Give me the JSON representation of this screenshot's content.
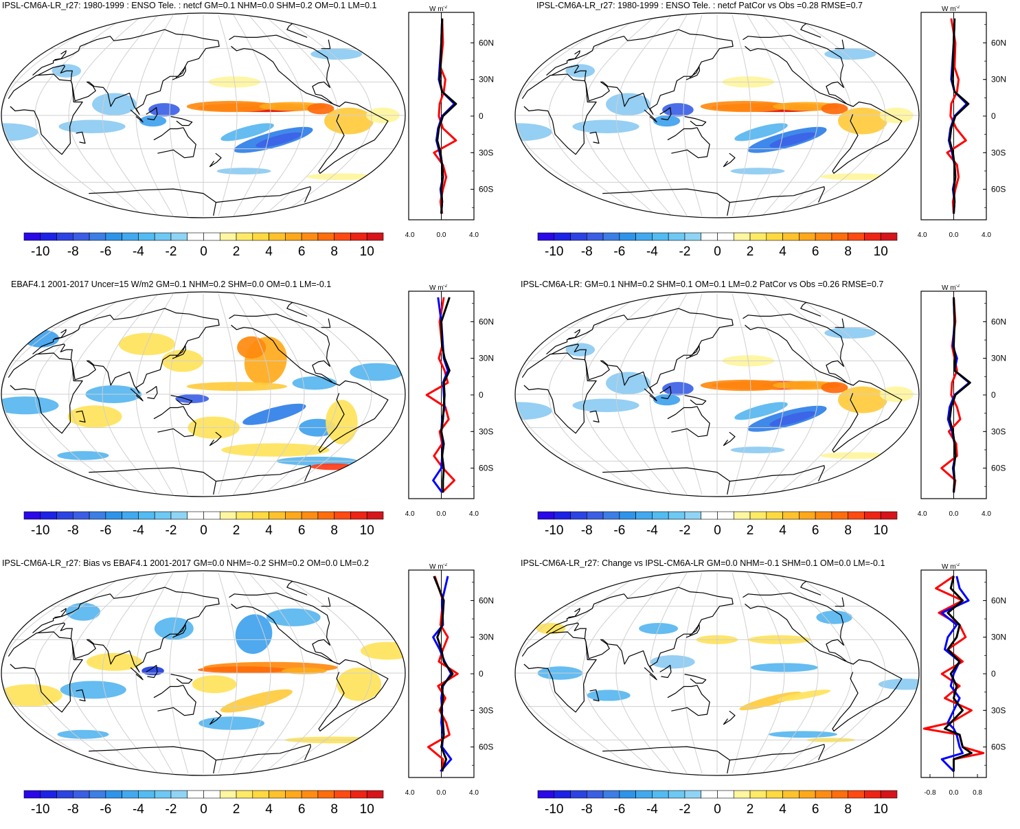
{
  "chart_data": [
    {
      "type": "heatmap",
      "title": "IPSL-CM6A-LR_r27: 1980-1999 : ENSO Tele. : netcf GM=0.1 NHM=0.0 SHM=0.2 OM=0.1 LM=0.1",
      "colorbar": {
        "ticks": [
          "-10",
          "-8",
          "-6",
          "-4",
          "-2",
          "0",
          "2",
          "4",
          "6",
          "8",
          "10"
        ],
        "range": [
          -11,
          11
        ]
      },
      "zonal_mean": {
        "unit_label": "W m",
        "unit_exp": "-2",
        "xticks": [
          "-4.0",
          "0.0",
          "4.0"
        ],
        "xlim": [
          -4,
          4
        ],
        "yticks": [
          "60N",
          "30N",
          "0",
          "30S",
          "60S"
        ],
        "series": [
          {
            "name": "obs",
            "color": "#ff0000",
            "lat": [
              80,
              60,
              40,
              30,
              20,
              10,
              0,
              -10,
              -20,
              -30,
              -40,
              -50,
              -60,
              -70,
              -80
            ],
            "values": [
              0.1,
              0.2,
              -0.1,
              0.5,
              0.3,
              -0.2,
              -0.3,
              0.2,
              1.8,
              -0.9,
              0.2,
              0.6,
              0.2,
              -0.1,
              0.1
            ]
          },
          {
            "name": "model_ref",
            "color": "#0000ff",
            "lat": [
              80,
              60,
              40,
              30,
              20,
              10,
              0,
              -10,
              -20,
              -30,
              -40,
              -50,
              -60,
              -70,
              -80
            ],
            "values": [
              0.1,
              0.0,
              -0.2,
              -0.3,
              0.1,
              1.6,
              0.1,
              -0.4,
              -0.6,
              -0.2,
              0.1,
              0.2,
              -0.1,
              0.1,
              0.0
            ]
          },
          {
            "name": "model",
            "color": "#000000",
            "lat": [
              80,
              60,
              40,
              30,
              20,
              10,
              0,
              -10,
              -20,
              -30,
              -40,
              -50,
              -60,
              -70,
              -80
            ],
            "values": [
              0.1,
              0.0,
              -0.1,
              -0.2,
              0.1,
              1.8,
              0.2,
              -0.3,
              -0.5,
              -0.1,
              0.1,
              0.2,
              0.0,
              0.1,
              0.0
            ]
          }
        ]
      }
    },
    {
      "type": "heatmap",
      "title": "IPSL-CM6A-LR_r27: 1980-1999 : ENSO Tele. : netcf PatCor vs Obs =0.28 RMSE=0.7",
      "colorbar": {
        "ticks": [
          "-10",
          "-8",
          "-6",
          "-4",
          "-2",
          "0",
          "2",
          "4",
          "6",
          "8",
          "10"
        ],
        "range": [
          -11,
          11
        ]
      },
      "zonal_mean": {
        "unit_label": "W m",
        "unit_exp": "-2",
        "xticks": [
          "-4.0",
          "0.0",
          "4.0"
        ],
        "xlim": [
          -4,
          4
        ],
        "yticks": [
          "60N",
          "30N",
          "0",
          "30S",
          "60S"
        ],
        "series": [
          {
            "name": "obs",
            "color": "#ff0000",
            "lat": [
              80,
              60,
              40,
              30,
              20,
              10,
              0,
              -10,
              -20,
              -30,
              -40,
              -50,
              -60,
              -70,
              -80
            ],
            "values": [
              -0.3,
              0.2,
              0.1,
              0.6,
              0.4,
              -0.3,
              -0.4,
              0.3,
              1.5,
              -0.8,
              0.4,
              0.6,
              0.2,
              -0.1,
              0.0
            ]
          },
          {
            "name": "model_ref",
            "color": "#0000ff",
            "lat": [
              80,
              60,
              40,
              30,
              20,
              10,
              0,
              -10,
              -20,
              -30,
              -40,
              -50,
              -60,
              -70,
              -80
            ],
            "values": [
              0.1,
              0.0,
              -0.2,
              -0.3,
              0.1,
              1.6,
              0.1,
              -0.4,
              -0.6,
              -0.2,
              0.1,
              0.2,
              -0.1,
              0.1,
              0.0
            ]
          },
          {
            "name": "model",
            "color": "#000000",
            "lat": [
              80,
              60,
              40,
              30,
              20,
              10,
              0,
              -10,
              -20,
              -30,
              -40,
              -50,
              -60,
              -70,
              -80
            ],
            "values": [
              0.1,
              0.0,
              -0.1,
              -0.2,
              0.1,
              1.8,
              0.2,
              -0.3,
              -0.5,
              -0.1,
              0.1,
              0.2,
              0.0,
              0.1,
              0.0
            ]
          }
        ]
      }
    },
    {
      "type": "heatmap",
      "title": "EBAF4.1 2001-2017 Uncer=15 W/m2 GM=0.1 NHM=0.2 SHM=0.0 OM=0.1 LM=-0.1",
      "colorbar": {
        "ticks": [
          "-10",
          "-8",
          "-6",
          "-4",
          "-2",
          "0",
          "2",
          "4",
          "6",
          "8",
          "10"
        ],
        "range": [
          -11,
          11
        ]
      },
      "zonal_mean": {
        "unit_label": "W m",
        "unit_exp": "-2",
        "xticks": [
          "-4.0",
          "0.0",
          "4.0"
        ],
        "xlim": [
          -4,
          4
        ],
        "yticks": [
          "60N",
          "30N",
          "0",
          "30S",
          "60S"
        ],
        "series": [
          {
            "name": "obs",
            "color": "#ff0000",
            "lat": [
              80,
              60,
              40,
              30,
              20,
              10,
              0,
              -10,
              -20,
              -30,
              -40,
              -50,
              -60,
              -70,
              -80
            ],
            "values": [
              0.3,
              -0.2,
              0.1,
              -0.3,
              0.4,
              0.8,
              -1.8,
              0.5,
              0.9,
              -0.2,
              0.1,
              -0.9,
              0.2,
              1.6,
              0.1
            ]
          },
          {
            "name": "model_ref",
            "color": "#0000ff",
            "lat": [
              80,
              60,
              40,
              30,
              20,
              10,
              0,
              -10,
              -20,
              -30,
              -40,
              -50,
              -60,
              -70,
              -80
            ],
            "values": [
              -0.4,
              0.0,
              0.2,
              0.3,
              0.8,
              0.2,
              0.3,
              0.4,
              0.1,
              0.0,
              0.2,
              0.1,
              0.0,
              -1.0,
              0.1
            ]
          },
          {
            "name": "model",
            "color": "#000000",
            "lat": [
              80,
              60,
              40,
              30,
              20,
              10,
              0,
              -10,
              -20,
              -30,
              -40,
              -50,
              -60,
              -70,
              -80
            ],
            "values": [
              1.0,
              0.0,
              0.1,
              0.4,
              1.0,
              0.3,
              0.4,
              0.3,
              0.2,
              0.0,
              0.3,
              0.1,
              0.3,
              0.2,
              0.2
            ]
          }
        ]
      }
    },
    {
      "type": "heatmap",
      "title": "IPSL-CM6A-LR: GM=0.1 NHM=0.2 SHM=0.1 OM=0.1 LM=0.2 PatCor vs Obs =0.26 RMSE=0.7",
      "colorbar": {
        "ticks": [
          "-10",
          "-8",
          "-6",
          "-4",
          "-2",
          "0",
          "2",
          "4",
          "6",
          "8",
          "10"
        ],
        "range": [
          -11,
          11
        ]
      },
      "zonal_mean": {
        "unit_label": "W m",
        "unit_exp": "-2",
        "xticks": [
          "-4.0",
          "0.0",
          "4.0"
        ],
        "xlim": [
          -4,
          4
        ],
        "yticks": [
          "60N",
          "30N",
          "0",
          "30S",
          "60S"
        ],
        "series": [
          {
            "name": "obs",
            "color": "#ff0000",
            "lat": [
              80,
              60,
              40,
              30,
              20,
              10,
              0,
              -10,
              -20,
              -30,
              -40,
              -50,
              -60,
              -70,
              -80
            ],
            "values": [
              0.0,
              0.2,
              -0.2,
              0.1,
              0.4,
              -0.2,
              -0.3,
              0.4,
              0.8,
              -0.6,
              0.3,
              0.4,
              -1.5,
              0.2,
              0.0
            ]
          },
          {
            "name": "model_ref",
            "color": "#0000ff",
            "lat": [
              80,
              60,
              40,
              30,
              20,
              10,
              0,
              -10,
              -20,
              -30,
              -40,
              -50,
              -60,
              -70,
              -80
            ],
            "values": [
              0.0,
              0.1,
              -0.1,
              0.4,
              0.1,
              1.9,
              0.1,
              -0.5,
              -0.7,
              -0.2,
              0.1,
              0.2,
              -0.1,
              0.1,
              0.0
            ]
          },
          {
            "name": "model",
            "color": "#000000",
            "lat": [
              80,
              60,
              40,
              30,
              20,
              10,
              0,
              -10,
              -20,
              -30,
              -40,
              -50,
              -60,
              -70,
              -80
            ],
            "values": [
              0.0,
              0.1,
              0.0,
              0.2,
              0.1,
              2.0,
              0.2,
              -0.3,
              -0.5,
              -0.1,
              0.1,
              0.2,
              0.0,
              0.1,
              0.0
            ]
          }
        ]
      }
    },
    {
      "type": "heatmap",
      "title": "IPSL-CM6A-LR_r27: Bias vs EBAF4.1 2001-2017 GM=0.0 NHM=-0.2 SHM=0.2 OM=0.0 LM=0.2",
      "colorbar": {
        "ticks": [
          "-10",
          "-8",
          "-6",
          "-4",
          "-2",
          "0",
          "2",
          "4",
          "6",
          "8",
          "10"
        ],
        "range": [
          -11,
          11
        ]
      },
      "zonal_mean": {
        "unit_label": "W m",
        "unit_exp": "-2",
        "xticks": [
          "-4.0",
          "0.0",
          "4.0"
        ],
        "xlim": [
          -4,
          4
        ],
        "yticks": [
          "60N",
          "30N",
          "0",
          "30S",
          "60S"
        ],
        "series": [
          {
            "name": "obs",
            "color": "#ff0000",
            "lat": [
              80,
              60,
              40,
              30,
              20,
              10,
              0,
              -10,
              -20,
              -30,
              -40,
              -50,
              -60,
              -70,
              -80
            ],
            "values": [
              -0.8,
              0.2,
              -0.1,
              0.8,
              0.2,
              -0.3,
              2.0,
              -0.4,
              0.5,
              -0.2,
              0.6,
              1.0,
              -1.6,
              0.2,
              0.1
            ]
          },
          {
            "name": "model_ref",
            "color": "#0000ff",
            "lat": [
              80,
              60,
              40,
              30,
              20,
              10,
              0,
              -10,
              -20,
              -30,
              -40,
              -50,
              -60,
              -70,
              -80
            ],
            "values": [
              0.8,
              0.1,
              0.2,
              -1.0,
              -0.2,
              0.4,
              1.2,
              0.2,
              0.0,
              0.1,
              0.0,
              0.2,
              0.1,
              1.2,
              -0.1
            ]
          },
          {
            "name": "model",
            "color": "#000000",
            "lat": [
              80,
              60,
              40,
              30,
              20,
              10,
              0,
              -10,
              -20,
              -30,
              -40,
              -50,
              -60,
              -70,
              -80
            ],
            "values": [
              -0.9,
              0.3,
              0.1,
              -0.5,
              0.0,
              0.3,
              1.4,
              0.1,
              0.2,
              0.0,
              0.2,
              0.3,
              0.0,
              0.6,
              0.1
            ]
          }
        ]
      }
    },
    {
      "type": "heatmap",
      "title": "IPSL-CM6A-LR_r27: Change vs IPSL-CM6A-LR GM=0.0 NHM=-0.1 SHM=0.1 OM=0.0 LM=-0.1",
      "colorbar": {
        "ticks": [
          "-10",
          "-8",
          "-6",
          "-4",
          "-2",
          "0",
          "2",
          "4",
          "6",
          "8",
          "10"
        ],
        "range": [
          -11,
          11
        ]
      },
      "zonal_mean": {
        "unit_label": "W m",
        "unit_exp": "-2",
        "xticks": [
          "-0.8",
          "0.0",
          "0.8"
        ],
        "xlim": [
          -1.1,
          1.1
        ],
        "yticks": [
          "60N",
          "30N",
          "0",
          "30S",
          "60S"
        ],
        "series": [
          {
            "name": "obs",
            "color": "#ff0000",
            "lat": [
              80,
              70,
              60,
              50,
              40,
              30,
              20,
              10,
              0,
              -10,
              -20,
              -30,
              -40,
              -45,
              -50,
              -60,
              -65,
              -70,
              -80
            ],
            "values": [
              0.0,
              -0.6,
              0.3,
              -0.5,
              0.2,
              0.4,
              -0.2,
              0.3,
              -0.4,
              0.2,
              -0.3,
              0.6,
              -0.1,
              -1.0,
              0.2,
              0.3,
              1.0,
              0.0,
              0.0
            ]
          },
          {
            "name": "model_ref",
            "color": "#0000ff",
            "lat": [
              80,
              70,
              60,
              50,
              40,
              30,
              20,
              10,
              0,
              -10,
              -20,
              -30,
              -40,
              -45,
              -50,
              -60,
              -65,
              -70,
              -80
            ],
            "values": [
              0.1,
              0.2,
              0.5,
              -0.4,
              0.1,
              -0.2,
              -0.3,
              0.2,
              0.0,
              -0.1,
              0.2,
              0.0,
              -0.2,
              0.0,
              0.1,
              0.2,
              0.3,
              -0.4,
              0.0
            ]
          },
          {
            "name": "model",
            "color": "#000000",
            "lat": [
              80,
              70,
              60,
              50,
              40,
              30,
              20,
              10,
              0,
              -10,
              -20,
              -30,
              -40,
              -45,
              -50,
              -60,
              -65,
              -70,
              -80
            ],
            "values": [
              0.0,
              -0.1,
              0.3,
              -0.2,
              0.2,
              0.1,
              -0.2,
              0.2,
              -0.1,
              0.1,
              0.0,
              0.3,
              -0.1,
              -0.3,
              0.2,
              0.3,
              0.6,
              0.0,
              0.0
            ]
          }
        ]
      }
    }
  ]
}
